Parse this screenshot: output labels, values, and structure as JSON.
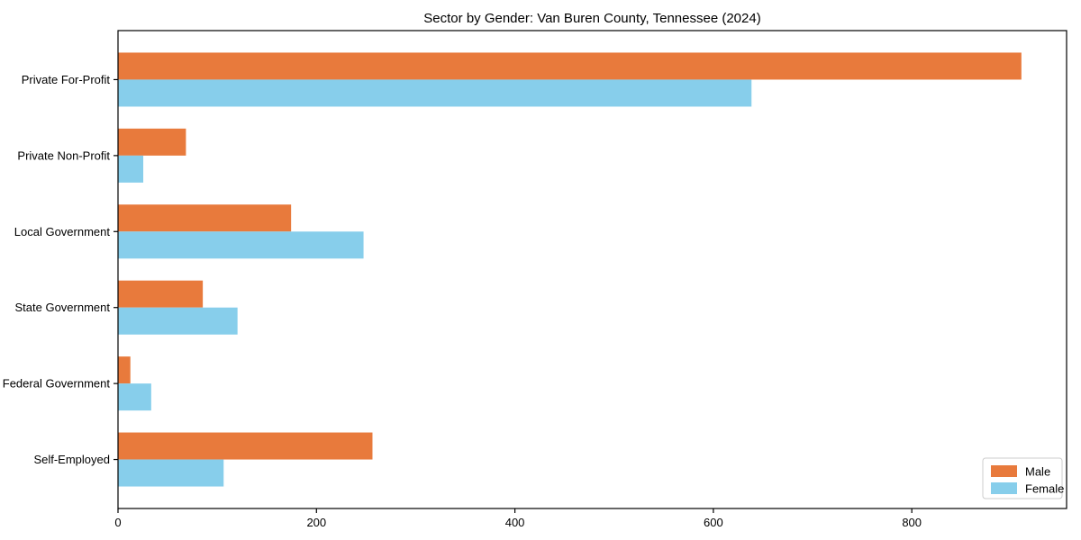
{
  "chart_data": {
    "type": "bar",
    "orientation": "horizontal",
    "title": "Sector by Gender: Van Buren County, Tennessee (2024)",
    "categories": [
      "Private For-Profit",
      "Private Non-Profit",
      "Local Government",
      "State Government",
      "Federal Government",
      "Self-Employed"
    ],
    "series": [
      {
        "name": "Male",
        "color": "#E87A3C",
        "values": [
          910,
          68,
          174,
          85,
          12,
          256
        ]
      },
      {
        "name": "Female",
        "color": "#87CEEB",
        "values": [
          638,
          25,
          247,
          120,
          33,
          106
        ]
      }
    ],
    "xlabel": "",
    "ylabel": "",
    "xlim": [
      0,
      956
    ],
    "xticks": [
      "0",
      "200",
      "400",
      "600",
      "800"
    ],
    "xtick_values": [
      0,
      200,
      400,
      600,
      800
    ],
    "grid": false,
    "bar_width": 0.355,
    "legend": {
      "position": "lower right",
      "entries": [
        {
          "label": "Male",
          "color": "#E87A3C"
        },
        {
          "label": "Female",
          "color": "#87CEEB"
        }
      ]
    },
    "frame_color": "#000000",
    "background_color": "#ffffff"
  }
}
